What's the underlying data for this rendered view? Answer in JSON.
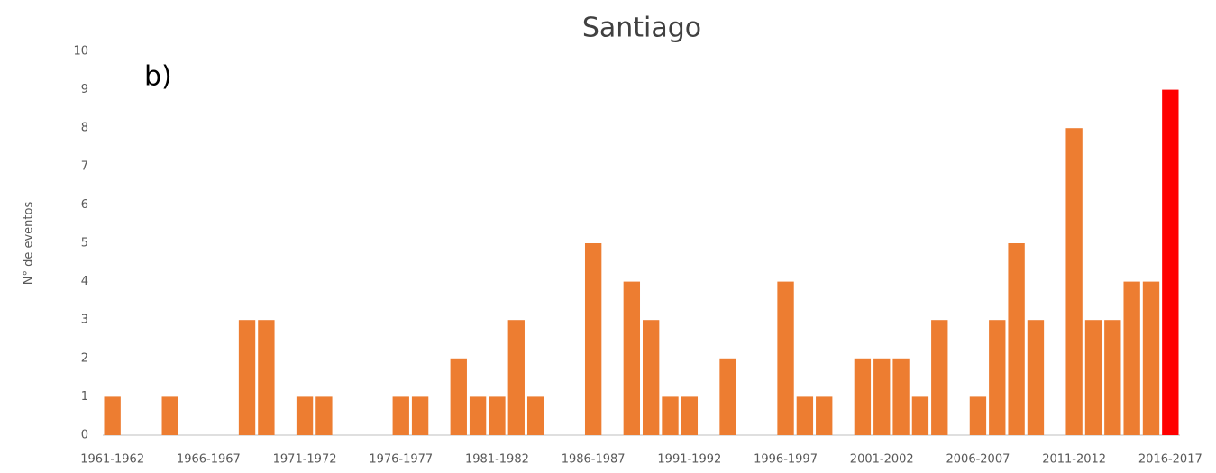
{
  "chart_data": {
    "type": "bar",
    "title": "Santiago",
    "annotation": "b)",
    "y_label": "N° de eventos",
    "categories": [
      "1961-1962",
      null,
      null,
      null,
      null,
      "1966-1967",
      null,
      null,
      null,
      null,
      "1971-1972",
      null,
      null,
      null,
      null,
      "1976-1977",
      null,
      null,
      null,
      null,
      "1981-1982",
      null,
      null,
      null,
      null,
      "1986-1987",
      null,
      null,
      null,
      null,
      "1991-1992",
      null,
      null,
      null,
      null,
      "1996-1997",
      null,
      null,
      null,
      null,
      "2001-2002",
      null,
      null,
      null,
      null,
      "2006-2007",
      null,
      null,
      null,
      null,
      "2011-2012",
      null,
      null,
      null,
      null,
      "2016-2017"
    ],
    "values": [
      1,
      0,
      0,
      1,
      0,
      0,
      0,
      3,
      3,
      0,
      1,
      1,
      0,
      0,
      0,
      1,
      1,
      0,
      2,
      1,
      1,
      3,
      1,
      0,
      0,
      5,
      0,
      4,
      3,
      1,
      1,
      0,
      2,
      0,
      0,
      4,
      1,
      1,
      0,
      2,
      2,
      2,
      1,
      3,
      0,
      1,
      3,
      5,
      3,
      0,
      8,
      3,
      3,
      4,
      4,
      9
    ],
    "colors": [
      "#ed7d31",
      "#ed7d31",
      "#ed7d31",
      "#ed7d31",
      "#ed7d31",
      "#ed7d31",
      "#ed7d31",
      "#ed7d31",
      "#ed7d31",
      "#ed7d31",
      "#ed7d31",
      "#ed7d31",
      "#ed7d31",
      "#ed7d31",
      "#ed7d31",
      "#ed7d31",
      "#ed7d31",
      "#ed7d31",
      "#ed7d31",
      "#ed7d31",
      "#ed7d31",
      "#ed7d31",
      "#ed7d31",
      "#ed7d31",
      "#ed7d31",
      "#ed7d31",
      "#ed7d31",
      "#ed7d31",
      "#ed7d31",
      "#ed7d31",
      "#ed7d31",
      "#ed7d31",
      "#ed7d31",
      "#ed7d31",
      "#ed7d31",
      "#ed7d31",
      "#ed7d31",
      "#ed7d31",
      "#ed7d31",
      "#ed7d31",
      "#ed7d31",
      "#ed7d31",
      "#ed7d31",
      "#ed7d31",
      "#ed7d31",
      "#ed7d31",
      "#ed7d31",
      "#ed7d31",
      "#ed7d31",
      "#ed7d31",
      "#ed7d31",
      "#ed7d31",
      "#ed7d31",
      "#ed7d31",
      "#ed7d31",
      "#ff0000"
    ],
    "ylim": [
      0,
      10
    ],
    "yticks": [
      0,
      1,
      2,
      3,
      4,
      5,
      6,
      7,
      8,
      9,
      10
    ],
    "grid": false
  }
}
